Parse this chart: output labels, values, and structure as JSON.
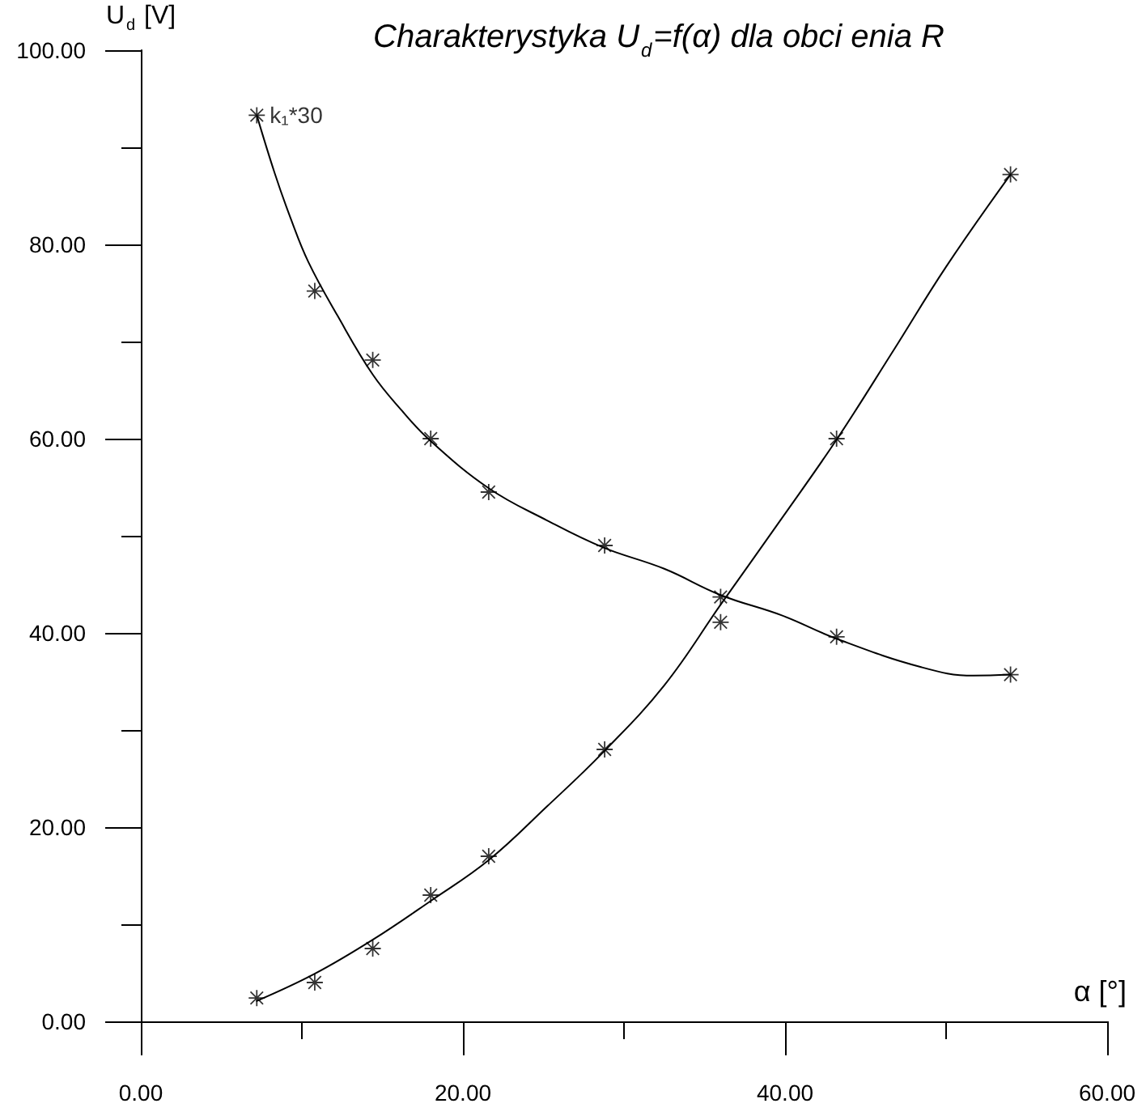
{
  "chart_data": {
    "type": "scatter",
    "title": "Charakterystyka U$_{d}$=f(α) dla obci enia R",
    "xlabel": "α [°]",
    "ylabel": "U$_{d}$ [V]",
    "xlim": [
      0,
      60
    ],
    "ylim": [
      0,
      100
    ],
    "xticks": [
      {
        "value": 0,
        "label": "0.00"
      },
      {
        "value": 10,
        "label": null
      },
      {
        "value": 20,
        "label": "20.00"
      },
      {
        "value": 30,
        "label": null
      },
      {
        "value": 40,
        "label": "40.00"
      },
      {
        "value": 50,
        "label": null
      },
      {
        "value": 60,
        "label": "60.00"
      }
    ],
    "yticks": [
      {
        "value": 0,
        "label": "0.00"
      },
      {
        "value": 10,
        "label": null
      },
      {
        "value": 20,
        "label": "20.00"
      },
      {
        "value": 30,
        "label": null
      },
      {
        "value": 40,
        "label": "40.00"
      },
      {
        "value": 50,
        "label": null
      },
      {
        "value": 60,
        "label": "60.00"
      },
      {
        "value": 70,
        "label": null
      },
      {
        "value": 80,
        "label": "80.00"
      },
      {
        "value": 90,
        "label": null
      },
      {
        "value": 100,
        "label": "100.00"
      }
    ],
    "grid": false,
    "marker": "star",
    "line_style": "solid",
    "series": [
      {
        "name": "k₁*30",
        "color": "#000000",
        "x": [
          7.2,
          10.8,
          14.4,
          18,
          21.6,
          28.8,
          36,
          43.2,
          54
        ],
        "values": [
          93.3,
          75.2,
          68.1,
          60.0,
          54.5,
          49.0,
          43.7,
          39.6,
          35.7
        ]
      },
      {
        "color": "#000000",
        "x": [
          7.2,
          10.8,
          14.4,
          18,
          21.6,
          28.8,
          36,
          43.2,
          54
        ],
        "values": [
          2.4,
          4.0,
          7.5,
          13.0,
          17.0,
          28.0,
          41.1,
          60.0,
          87.2
        ]
      },
      {
        "type": "line",
        "marker": "none",
        "color": "#000000",
        "x": [
          7.2,
          8.3,
          9.3,
          10.4,
          12.2,
          14.4,
          16.2,
          17.9,
          21.6,
          25.2,
          28.7,
          32.5,
          36.0,
          39.8,
          43.2,
          48.4,
          51.7,
          54.0
        ],
        "values": [
          93.3,
          87.4,
          82.7,
          78.2,
          72.7,
          66.6,
          62.9,
          59.9,
          54.9,
          51.6,
          48.8,
          46.6,
          43.9,
          41.8,
          39.4,
          36.5,
          35.6,
          35.7
        ]
      },
      {
        "type": "line",
        "marker": "none",
        "color": "#000000",
        "x": [
          7.2,
          10.8,
          14.4,
          18.0,
          21.6,
          25.2,
          28.7,
          32.5,
          36.0,
          39.8,
          43.2,
          46.7,
          50.0,
          54.0
        ],
        "values": [
          2.1,
          4.9,
          8.4,
          12.4,
          16.6,
          22.1,
          27.7,
          34.6,
          42.9,
          51.8,
          59.9,
          69.0,
          77.7,
          87.2
        ]
      }
    ]
  }
}
